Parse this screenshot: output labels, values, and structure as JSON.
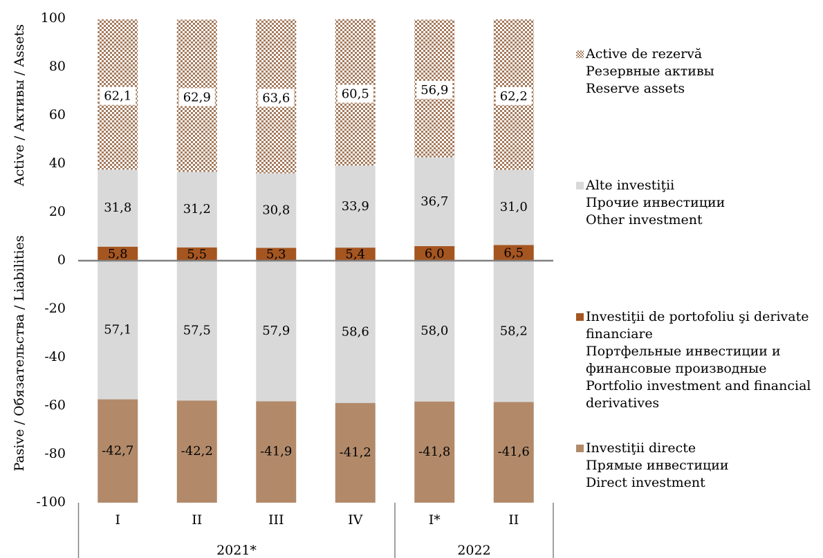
{
  "chart_data": {
    "type": "bar",
    "stacked": true,
    "ylim": [
      -100,
      100
    ],
    "yticks": [
      100,
      80,
      60,
      40,
      20,
      0,
      -20,
      -40,
      -60,
      -80,
      -100
    ],
    "ylabel_assets": "Active / Активы / Assets",
    "ylabel_liabilities": "Pasive / Обязательства / Liabilities",
    "categories": [
      "I",
      "II",
      "III",
      "IV",
      "I*",
      "II"
    ],
    "year_groups": [
      {
        "label": "2021*",
        "count": 4
      },
      {
        "label": "2022",
        "count": 2
      }
    ],
    "assets_series": [
      {
        "name": "Investiţii de portofoliu şi derivate financiare",
        "values": [
          5.8,
          5.5,
          5.3,
          5.4,
          6.0,
          6.5
        ]
      },
      {
        "name": "Alte investiţii",
        "values": [
          31.8,
          31.2,
          30.8,
          33.9,
          36.7,
          31.0
        ]
      },
      {
        "name": "Active de rezervă",
        "values": [
          62.1,
          62.9,
          63.6,
          60.5,
          56.9,
          62.2
        ]
      }
    ],
    "liabilities_series": [
      {
        "name": "Investiţii de portofoliu şi derivate financiare",
        "values": [
          0.2,
          0.3,
          0.2,
          0.2,
          0.2,
          0.2
        ]
      },
      {
        "name": "Alte investiţii",
        "values": [
          57.1,
          57.5,
          57.9,
          58.6,
          58.0,
          58.2
        ]
      },
      {
        "name": "Investiţii directe",
        "values": [
          42.7,
          42.2,
          41.9,
          41.2,
          41.8,
          41.6
        ]
      }
    ],
    "data_labels": {
      "reserve": [
        "62,1",
        "62,9",
        "63,6",
        "60,5",
        "56,9",
        "62,2"
      ],
      "other_assets": [
        "31,8",
        "31,2",
        "30,8",
        "33,9",
        "36,7",
        "31,0"
      ],
      "portfolio_assets": [
        "5,8",
        "5,5",
        "5,3",
        "5,4",
        "6,0",
        "6,5"
      ],
      "other_liabilities": [
        "57,1",
        "57,5",
        "57,9",
        "58,6",
        "58,0",
        "58,2"
      ],
      "direct_liabilities": [
        "-42,7",
        "-42,2",
        "-41,9",
        "-41,2",
        "-41,8",
        "-41,6"
      ]
    }
  },
  "colors": {
    "reserve_bg": "#ffffff",
    "reserve_fg": "#a47a5c",
    "other": "#d9d9d9",
    "portfolio": "#a55520",
    "direct": "#b28a6a",
    "axis": "#808080"
  },
  "legend": {
    "items": [
      {
        "key": "reserve",
        "lines": [
          "Active de rezervă",
          "Резервные активы",
          "Reserve assets"
        ]
      },
      {
        "key": "other",
        "lines": [
          "Alte investiţii",
          "Прочие инвестиции",
          "Other investment"
        ]
      },
      {
        "key": "portfolio",
        "lines": [
          "Investiţii de portofoliu şi derivate financiare",
          "Портфельные инвестиции и финансовые производные",
          "Portfolio investment and financial derivatives"
        ]
      },
      {
        "key": "direct",
        "lines": [
          "Investiţii directe",
          "Прямые инвестиции",
          "Direct investment"
        ]
      }
    ]
  }
}
